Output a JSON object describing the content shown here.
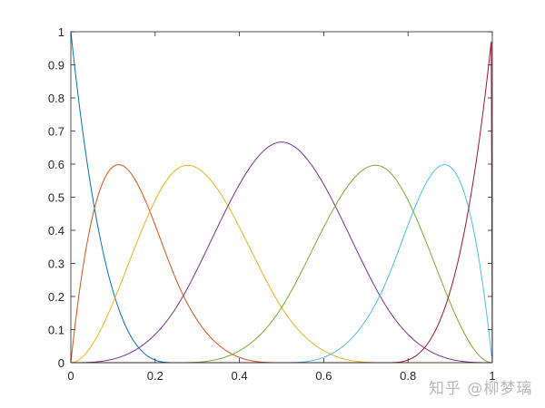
{
  "chart_data": {
    "type": "line",
    "title": "",
    "xlabel": "",
    "ylabel": "",
    "xlim": [
      0,
      1
    ],
    "ylim": [
      0,
      1
    ],
    "xticks": [
      "0",
      "0.2",
      "0.4",
      "0.6",
      "0.8",
      "1"
    ],
    "yticks": [
      "0",
      "0.1",
      "0.2",
      "0.3",
      "0.4",
      "0.5",
      "0.6",
      "0.7",
      "0.8",
      "0.9",
      "1"
    ],
    "grid": false,
    "legend": "none",
    "degree": 3,
    "knots": [
      0,
      0,
      0,
      0,
      0.25,
      0.5,
      0.75,
      1,
      1,
      1,
      1
    ],
    "series": [
      {
        "color": "#0072BD",
        "peak": [
          0,
          1
        ]
      },
      {
        "color": "#D95319",
        "peak": [
          0.11,
          0.6
        ]
      },
      {
        "color": "#EDB120",
        "peak": [
          0.28,
          0.6
        ]
      },
      {
        "color": "#7E2F8E",
        "peak": [
          0.5,
          0.667
        ]
      },
      {
        "color": "#77AC30",
        "peak": [
          0.72,
          0.6
        ]
      },
      {
        "color": "#4DBEEE",
        "peak": [
          0.89,
          0.6
        ]
      },
      {
        "color": "#A2142F",
        "peak": [
          1,
          1
        ]
      }
    ]
  },
  "watermark": "知乎 @柳梦璃"
}
